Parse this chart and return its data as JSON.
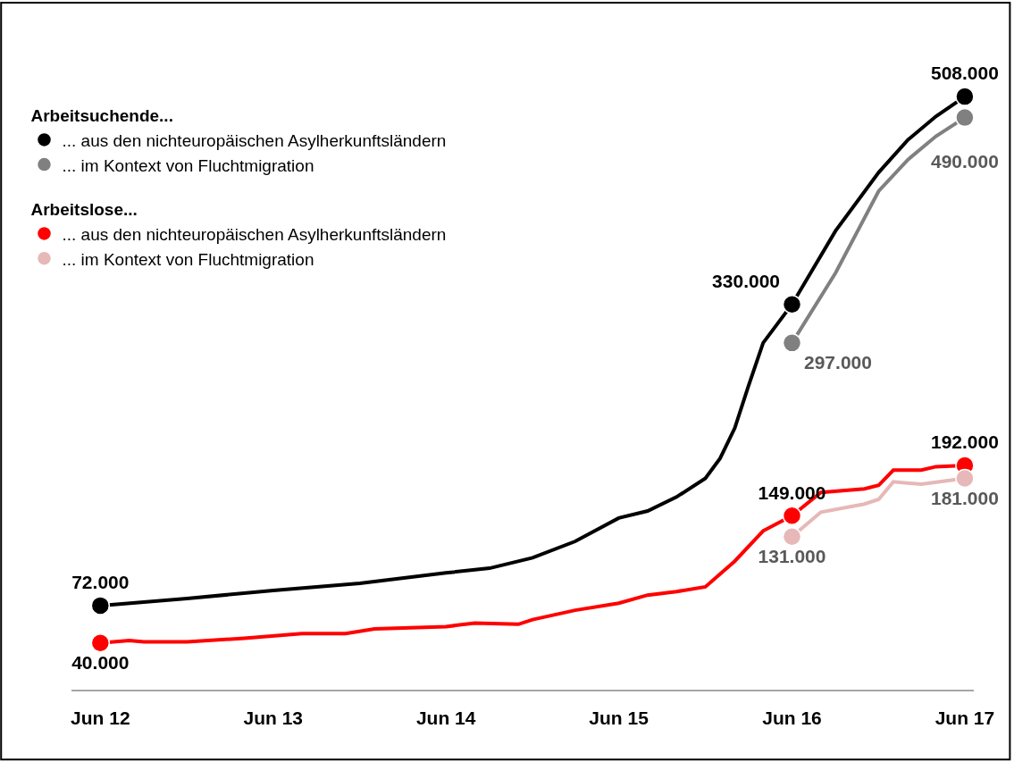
{
  "chart_data": {
    "type": "line",
    "xlim": [
      "2012-04-01",
      "2017-06-20"
    ],
    "annotations": [
      "Arbeitsuchende...",
      "Arbeitslose..."
    ],
    "xticks": [
      {
        "value": "2012-06",
        "label": "Jun 12"
      },
      {
        "value": "2013-06",
        "label": "Jun 13"
      },
      {
        "value": "2014-06",
        "label": "Jun 14"
      },
      {
        "value": "2015-06",
        "label": "Jun 15"
      },
      {
        "value": "2016-06",
        "label": "Jun 16"
      },
      {
        "value": "2017-06",
        "label": "Jun 17"
      }
    ],
    "tick_labels": "x",
    "legend": "top left",
    "line_style": "solid",
    "series": [
      {
        "name": "... aus den nichteuropäischen Asylherkunftsländern",
        "color": "#000000",
        "x": [
          "2012-06",
          "2012-12",
          "2013-06",
          "2013-12",
          "2014-06",
          "2014-09",
          "2014-12",
          "2015-03",
          "2015-06",
          "2015-08",
          "2015-10",
          "2015-12",
          "2016-01",
          "2016-02",
          "2016-03",
          "2016-04",
          "2016-06",
          "2016-09",
          "2016-12",
          "2017-02",
          "2017-04",
          "2017-06"
        ],
        "values": [
          72000,
          78000,
          85000,
          91000,
          100000,
          104000,
          113000,
          127000,
          147000,
          153000,
          165000,
          181000,
          198000,
          224000,
          260000,
          297000,
          330000,
          393000,
          443000,
          471000,
          491000,
          508000
        ],
        "value_labels": [
          "72.000",
          null,
          null,
          null,
          null,
          null,
          null,
          null,
          null,
          null,
          null,
          null,
          null,
          null,
          null,
          null,
          "330.000",
          null,
          null,
          null,
          null,
          "508.000"
        ]
      },
      {
        "name": "... im Kontext von Fluchtmigration",
        "color": "#808080",
        "x": [
          "2016-06",
          "2016-09",
          "2016-12",
          "2017-02",
          "2017-04",
          "2017-06"
        ],
        "values": [
          297000,
          357000,
          427000,
          454000,
          474000,
          490000
        ],
        "value_labels": [
          "297.000",
          null,
          null,
          null,
          null,
          "490.000"
        ]
      },
      {
        "name": "... aus den nichteuropäischen Asylherkunftsländern",
        "color": "#ff0000",
        "x": [
          "2012-06",
          "2012-08",
          "2012-09",
          "2012-12",
          "2013-04",
          "2013-08",
          "2013-11",
          "2014-01",
          "2014-06",
          "2014-08",
          "2014-11",
          "2014-12",
          "2015-03",
          "2015-06",
          "2015-08",
          "2015-10",
          "2015-12",
          "2016-02",
          "2016-04",
          "2016-06",
          "2016-08",
          "2016-11",
          "2016-12",
          "2017-01",
          "2017-03",
          "2017-04",
          "2017-06"
        ],
        "values": [
          40000,
          42000,
          41000,
          41000,
          44000,
          48000,
          48000,
          52000,
          54000,
          57000,
          56000,
          60000,
          68000,
          74000,
          81000,
          84000,
          88000,
          110000,
          136000,
          149000,
          169000,
          172000,
          175000,
          188000,
          188000,
          191000,
          192000
        ],
        "value_labels": [
          "40.000",
          null,
          null,
          null,
          null,
          null,
          null,
          null,
          null,
          null,
          null,
          null,
          null,
          null,
          null,
          null,
          null,
          null,
          null,
          "149.000",
          null,
          null,
          null,
          null,
          null,
          null,
          "192.000"
        ]
      },
      {
        "name": "... im Kontext von Fluchtmigration",
        "color": "#e6b8b7",
        "x": [
          "2016-06",
          "2016-08",
          "2016-11",
          "2016-12",
          "2017-01",
          "2017-03",
          "2017-06"
        ],
        "values": [
          131000,
          152000,
          159000,
          163000,
          178000,
          176000,
          181000
        ],
        "value_labels": [
          "131.000",
          null,
          null,
          null,
          null,
          null,
          "181.000"
        ]
      }
    ]
  }
}
